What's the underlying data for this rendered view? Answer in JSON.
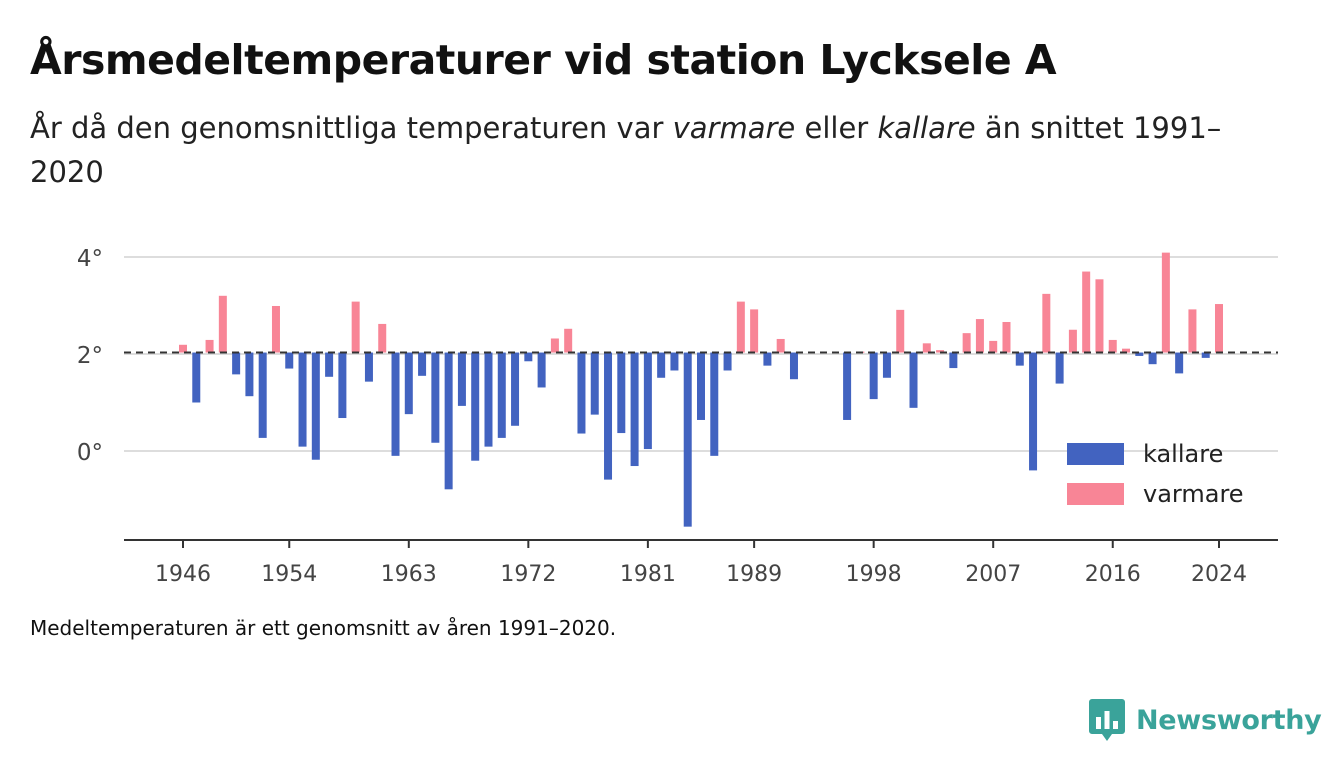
{
  "title": "Årsmedeltemperaturer vid station Lycksele A",
  "subtitle": {
    "before": "År då den genomsnittliga temperaturen var ",
    "warm_word": "varmare",
    "middle": " eller ",
    "cold_word": "kallare",
    "after": " än snittet 1991–2020"
  },
  "note": "Medeltemperaturen är ett genomsnitt av åren 1991–2020.",
  "brand": "Newsworthy",
  "colors": {
    "cold": "#4263c0",
    "warm": "#f88596",
    "brand": "#3aa39a"
  },
  "chart_data": {
    "type": "bar",
    "reference_value": 2.03,
    "ylim": [
      -1.8,
      4.3
    ],
    "y_ticks": [
      0,
      2,
      4
    ],
    "y_tick_labels": [
      "0°",
      "2°",
      "4°"
    ],
    "x_ticks": [
      1946,
      1954,
      1963,
      1972,
      1981,
      1989,
      1998,
      2007,
      2016,
      2024
    ],
    "grid": true,
    "legend_position": "bottom-right",
    "legend": [
      {
        "label": "kallare",
        "color": "#4263c0"
      },
      {
        "label": "varmare",
        "color": "#f88596"
      }
    ],
    "x": [
      1946,
      1947,
      1948,
      1949,
      1950,
      1951,
      1952,
      1953,
      1954,
      1955,
      1956,
      1957,
      1958,
      1959,
      1960,
      1961,
      1962,
      1963,
      1964,
      1965,
      1966,
      1967,
      1968,
      1969,
      1970,
      1971,
      1972,
      1973,
      1974,
      1975,
      1976,
      1977,
      1978,
      1979,
      1980,
      1981,
      1982,
      1983,
      1984,
      1985,
      1986,
      1987,
      1988,
      1989,
      1990,
      1991,
      1992,
      1993,
      1994,
      1995,
      1996,
      1997,
      1998,
      1999,
      2000,
      2001,
      2002,
      2003,
      2004,
      2005,
      2006,
      2007,
      2008,
      2009,
      2010,
      2011,
      2012,
      2013,
      2014,
      2015,
      2016,
      2017,
      2018,
      2019,
      2020,
      2021,
      2022,
      2023,
      2024
    ],
    "values": [
      2.19,
      1.0,
      2.29,
      3.2,
      1.58,
      1.13,
      0.27,
      2.99,
      1.7,
      0.09,
      -0.18,
      1.53,
      0.68,
      3.08,
      1.43,
      2.62,
      -0.1,
      0.76,
      1.55,
      0.17,
      -0.79,
      0.93,
      -0.2,
      0.09,
      0.27,
      0.52,
      1.85,
      1.31,
      2.32,
      2.52,
      0.36,
      0.75,
      -0.59,
      0.37,
      -0.31,
      0.04,
      1.51,
      1.66,
      -1.56,
      0.64,
      -0.1,
      1.66,
      3.08,
      2.92,
      1.76,
      2.31,
      1.48,
      null,
      null,
      null,
      0.64,
      2.05,
      1.07,
      1.51,
      2.91,
      0.89,
      2.22,
      2.08,
      1.71,
      2.43,
      2.72,
      2.27,
      2.66,
      1.76,
      -0.4,
      3.24,
      1.39,
      2.5,
      3.7,
      3.54,
      2.29,
      2.11,
      1.96,
      1.79,
      4.09,
      1.6,
      2.92,
      1.92,
      3.03
    ]
  }
}
